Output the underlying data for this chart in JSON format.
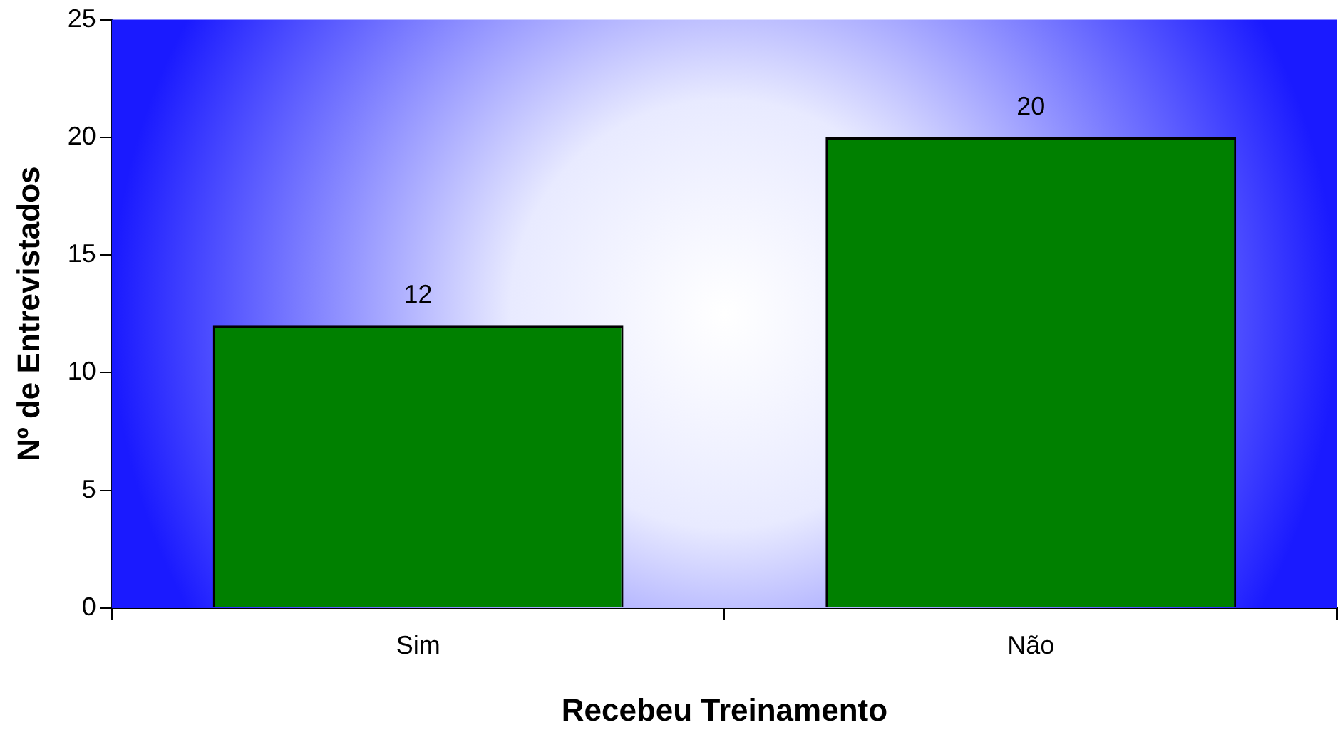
{
  "chart_data": {
    "type": "bar",
    "xlabel": "Recebeu Treinamento",
    "ylabel": "Nº de Entrevistados",
    "categories": [
      "Sim",
      "Não"
    ],
    "values": [
      12,
      20
    ],
    "color": "#008000",
    "ylim": [
      0,
      25
    ],
    "yticks": [
      0,
      5,
      10,
      15,
      20,
      25
    ],
    "grid": false,
    "legend": false,
    "data_labels": true
  }
}
